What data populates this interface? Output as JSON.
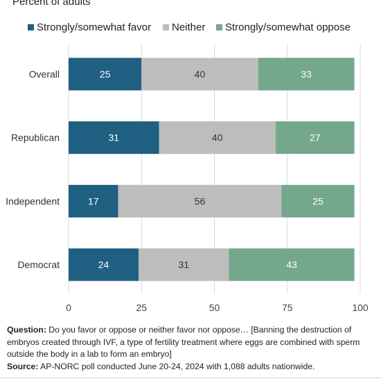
{
  "chart_data": {
    "type": "bar",
    "orientation": "horizontal",
    "stacked": true,
    "subtitle": "Percent of adults",
    "categories": [
      "Overall",
      "Republican",
      "Independent",
      "Democrat"
    ],
    "series": [
      {
        "name": "Strongly/somewhat favor",
        "color": "#1f5f82",
        "values": [
          25,
          31,
          17,
          24
        ]
      },
      {
        "name": "Neither",
        "color": "#bdbdbd",
        "values": [
          40,
          40,
          56,
          31
        ]
      },
      {
        "name": "Strongly/somewhat oppose",
        "color": "#74a78b",
        "values": [
          33,
          27,
          25,
          43
        ]
      }
    ],
    "xlim": [
      0,
      100
    ],
    "xticks": [
      "0",
      "25",
      "50",
      "75",
      "100"
    ],
    "grid": true,
    "legend_position": "top"
  },
  "footer": {
    "question_label": "Question:",
    "question_text": "Do you favor or oppose or neither favor nor oppose… [Banning the destruction of embryos created through IVF, a type of fertility treatment where eggs are combined with sperm outside the body in a lab to form an embryo]",
    "source_label": "Source:",
    "source_text": "AP-NORC poll conducted June 20-24, 2024 with 1,088 adults nationwide."
  }
}
